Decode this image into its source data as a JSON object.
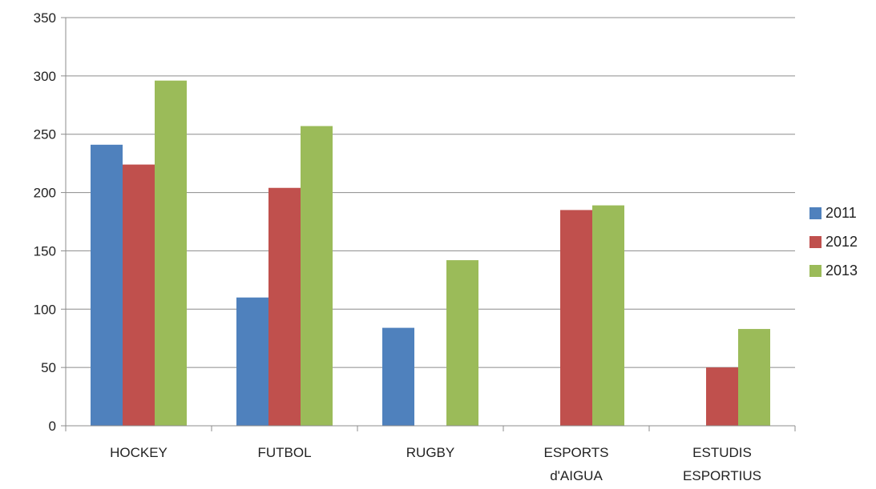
{
  "chart_data": {
    "type": "bar",
    "categories": [
      [
        "HOCKEY"
      ],
      [
        "FUTBOL"
      ],
      [
        "RUGBY"
      ],
      [
        "ESPORTS",
        "d'AIGUA"
      ],
      [
        "ESTUDIS",
        "ESPORTIUS"
      ]
    ],
    "series": [
      {
        "name": "2011",
        "color": "#4F81BD",
        "values": [
          241,
          110,
          84,
          null,
          null
        ]
      },
      {
        "name": "2012",
        "color": "#C0504D",
        "values": [
          224,
          204,
          null,
          185,
          50
        ]
      },
      {
        "name": "2013",
        "color": "#9BBB59",
        "values": [
          296,
          257,
          142,
          189,
          83
        ]
      }
    ],
    "ylim": [
      0,
      350
    ],
    "yticks": [
      0,
      50,
      100,
      150,
      200,
      250,
      300,
      350
    ],
    "grid": true,
    "legend_position": "right"
  }
}
